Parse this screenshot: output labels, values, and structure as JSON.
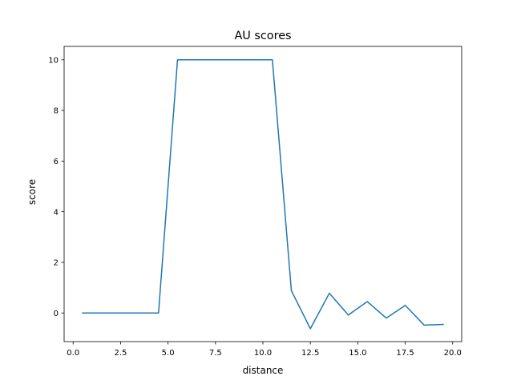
{
  "chart_data": {
    "type": "line",
    "title": "AU scores",
    "xlabel": "distance",
    "ylabel": "score",
    "xlim": [
      -0.475,
      20.475
    ],
    "ylim": [
      -1.13,
      10.53
    ],
    "grid": false,
    "x_ticks": [
      0.0,
      2.5,
      5.0,
      7.5,
      10.0,
      12.5,
      15.0,
      17.5,
      20.0
    ],
    "x_tick_labels": [
      "0.0",
      "2.5",
      "5.0",
      "7.5",
      "10.0",
      "12.5",
      "15.0",
      "17.5",
      "20.0"
    ],
    "y_ticks": [
      0,
      2,
      4,
      6,
      8,
      10
    ],
    "y_tick_labels": [
      "0",
      "2",
      "4",
      "6",
      "8",
      "10"
    ],
    "series": [
      {
        "color": "#1f77b4",
        "x": [
          0.5,
          1.5,
          2.5,
          3.5,
          4.5,
          5.5,
          6.5,
          7.5,
          8.5,
          9.5,
          10.5,
          11.5,
          12.5,
          13.5,
          14.5,
          15.5,
          16.5,
          17.5,
          18.5,
          19.5
        ],
        "y": [
          0,
          0,
          0,
          0,
          0,
          10,
          10,
          10,
          10,
          10,
          10,
          0.88,
          -0.62,
          0.78,
          -0.08,
          0.45,
          -0.2,
          0.3,
          -0.48,
          -0.45
        ]
      }
    ]
  }
}
